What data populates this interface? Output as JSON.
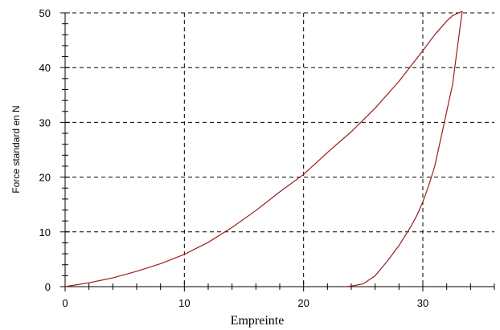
{
  "chart_data": {
    "type": "line",
    "title": "",
    "xlabel": "Empreinte",
    "ylabel": "Force standard en N",
    "xlim": [
      0,
      36
    ],
    "ylim": [
      0,
      50
    ],
    "x_ticks": [
      0,
      10,
      20,
      30
    ],
    "y_ticks": [
      0,
      10,
      20,
      30,
      40,
      50
    ],
    "grid": true,
    "legend": "none",
    "series_color": "#9b1c1c",
    "series": [
      {
        "x": [
          0,
          2,
          4,
          6,
          8,
          10,
          12,
          14,
          16,
          18,
          20,
          22,
          24,
          26,
          28,
          30,
          31,
          32,
          32.5,
          33,
          33.3
        ],
        "y": [
          0,
          0.7,
          1.6,
          2.8,
          4.2,
          5.9,
          8.1,
          10.8,
          13.9,
          17.3,
          20.5,
          24.5,
          28.3,
          32.6,
          37.5,
          43.1,
          46.0,
          48.5,
          49.5,
          50.0,
          50.3
        ]
      },
      {
        "x": [
          33.3,
          33.1,
          32.8,
          32.5,
          32.0,
          31.5,
          31.0,
          30.5,
          30.0,
          29.5,
          29.0,
          28.0,
          27.0,
          26.0,
          25.0,
          24.0,
          23.5
        ],
        "y": [
          50.3,
          47.0,
          42.0,
          37.0,
          32.0,
          27.0,
          22.0,
          18.5,
          15.5,
          13.0,
          11.0,
          7.5,
          4.6,
          2.0,
          0.5,
          0.1,
          0.0
        ]
      }
    ]
  }
}
